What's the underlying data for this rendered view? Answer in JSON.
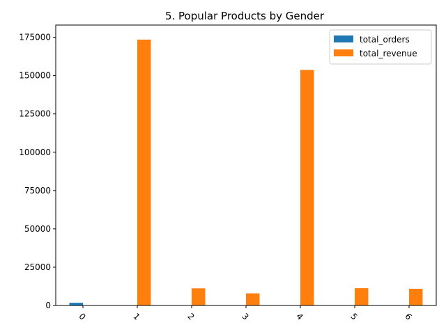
{
  "chart_data": {
    "type": "bar",
    "title": "5. Popular Products by Gender",
    "xlabel": "",
    "ylabel": "",
    "categories": [
      "0",
      "1",
      "2",
      "3",
      "4",
      "5",
      "6"
    ],
    "series": [
      {
        "name": "total_orders",
        "color": "#1f77b4",
        "values": [
          1750,
          40,
          30,
          20,
          35,
          25,
          30
        ]
      },
      {
        "name": "total_revenue",
        "color": "#ff7f0e",
        "values": [
          0,
          173500,
          11200,
          7900,
          153700,
          11300,
          10900
        ]
      }
    ],
    "ylim": [
      0,
      183000
    ],
    "yticks": [
      0,
      25000,
      50000,
      75000,
      100000,
      125000,
      150000,
      175000
    ],
    "ytick_labels": [
      "0",
      "25000",
      "50000",
      "75000",
      "100000",
      "125000",
      "150000",
      "175000"
    ],
    "legend_position": "top-right",
    "grid": false
  }
}
